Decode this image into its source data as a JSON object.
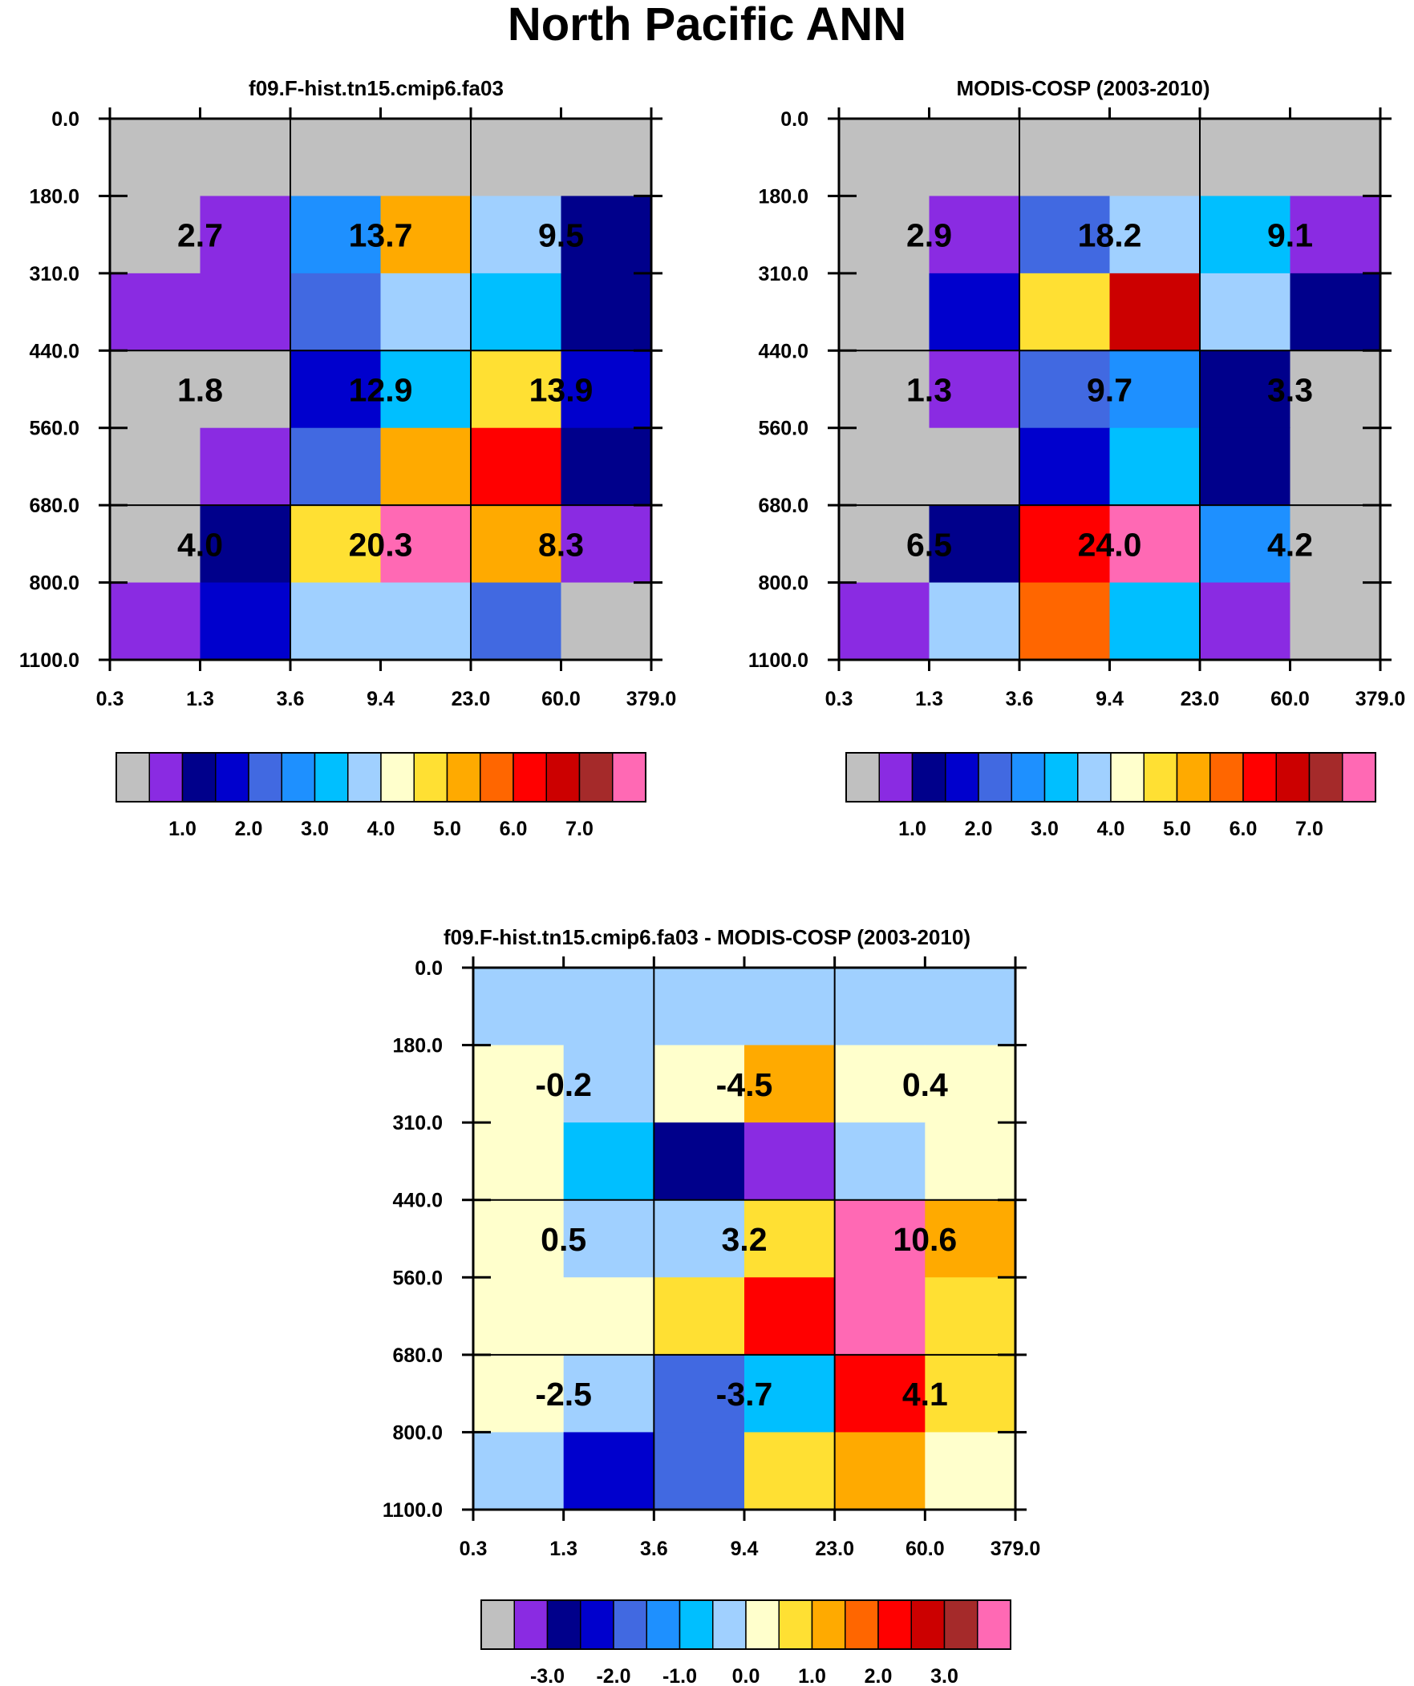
{
  "title": "North Pacific ANN",
  "x_ticks": [
    "0.3",
    "1.3",
    "3.6",
    "9.4",
    "23.0",
    "60.0",
    "379.0"
  ],
  "y_ticks": [
    "0.0",
    "180.0",
    "310.0",
    "440.0",
    "560.0",
    "680.0",
    "800.0",
    "1100.0"
  ],
  "colors": {
    "palette": [
      "#c0c0c0",
      "#8a2be2",
      "#00008b",
      "#0000cd",
      "#4169e1",
      "#1e90ff",
      "#00bfff",
      "#a0d0ff",
      "#ffffcc",
      "#ffe033",
      "#ffaa00",
      "#ff6600",
      "#ff0000",
      "#cc0000",
      "#a52a2a",
      "#ff69b4"
    ]
  },
  "chart_data": [
    {
      "type": "heatmap",
      "title": "f09.F-hist.tn15.cmip6.fa03",
      "xlabel": "",
      "ylabel": "",
      "x_edges": [
        "0.3",
        "1.3",
        "3.6",
        "9.4",
        "23.0",
        "60.0",
        "379.0"
      ],
      "y_edges": [
        "0.0",
        "180.0",
        "310.0",
        "440.0",
        "560.0",
        "680.0",
        "800.0",
        "1100.0"
      ],
      "cell_colors": [
        [
          "#c0c0c0",
          "#c0c0c0",
          "#c0c0c0",
          "#c0c0c0",
          "#c0c0c0",
          "#c0c0c0"
        ],
        [
          "#c0c0c0",
          "#8a2be2",
          "#1e90ff",
          "#ffaa00",
          "#a0d0ff",
          "#00008b"
        ],
        [
          "#8a2be2",
          "#8a2be2",
          "#4169e1",
          "#a0d0ff",
          "#00bfff",
          "#00008b"
        ],
        [
          "#c0c0c0",
          "#c0c0c0",
          "#0000cd",
          "#00bfff",
          "#ffe033",
          "#0000cd"
        ],
        [
          "#c0c0c0",
          "#8a2be2",
          "#4169e1",
          "#ffaa00",
          "#ff0000",
          "#00008b"
        ],
        [
          "#c0c0c0",
          "#00008b",
          "#ffe033",
          "#ff69b4",
          "#ffaa00",
          "#8a2be2"
        ],
        [
          "#8a2be2",
          "#0000cd",
          "#a0d0ff",
          "#a0d0ff",
          "#4169e1",
          "#c0c0c0"
        ]
      ],
      "block_totals": [
        [
          "2.7",
          "13.7",
          "9.5"
        ],
        [
          "1.8",
          "12.9",
          "13.9"
        ],
        [
          "4.0",
          "20.3",
          "8.3"
        ]
      ],
      "colorbar": {
        "colors": [
          "#c0c0c0",
          "#8a2be2",
          "#00008b",
          "#0000cd",
          "#4169e1",
          "#1e90ff",
          "#00bfff",
          "#a0d0ff",
          "#ffffcc",
          "#ffe033",
          "#ffaa00",
          "#ff6600",
          "#ff0000",
          "#cc0000",
          "#a52a2a",
          "#ff69b4"
        ],
        "labels": [
          "1.0",
          "2.0",
          "3.0",
          "4.0",
          "5.0",
          "6.0",
          "7.0"
        ]
      }
    },
    {
      "type": "heatmap",
      "title": "MODIS-COSP (2003-2010)",
      "xlabel": "",
      "ylabel": "",
      "x_edges": [
        "0.3",
        "1.3",
        "3.6",
        "9.4",
        "23.0",
        "60.0",
        "379.0"
      ],
      "y_edges": [
        "0.0",
        "180.0",
        "310.0",
        "440.0",
        "560.0",
        "680.0",
        "800.0",
        "1100.0"
      ],
      "cell_colors": [
        [
          "#c0c0c0",
          "#c0c0c0",
          "#c0c0c0",
          "#c0c0c0",
          "#c0c0c0",
          "#c0c0c0"
        ],
        [
          "#c0c0c0",
          "#8a2be2",
          "#4169e1",
          "#a0d0ff",
          "#00bfff",
          "#8a2be2"
        ],
        [
          "#c0c0c0",
          "#0000cd",
          "#ffe033",
          "#cc0000",
          "#a0d0ff",
          "#00008b"
        ],
        [
          "#c0c0c0",
          "#8a2be2",
          "#4169e1",
          "#1e90ff",
          "#00008b",
          "#c0c0c0"
        ],
        [
          "#c0c0c0",
          "#c0c0c0",
          "#0000cd",
          "#00bfff",
          "#00008b",
          "#c0c0c0"
        ],
        [
          "#c0c0c0",
          "#00008b",
          "#ff0000",
          "#ff69b4",
          "#1e90ff",
          "#c0c0c0"
        ],
        [
          "#8a2be2",
          "#a0d0ff",
          "#ff6600",
          "#00bfff",
          "#8a2be2",
          "#c0c0c0"
        ]
      ],
      "block_totals": [
        [
          "2.9",
          "18.2",
          "9.1"
        ],
        [
          "1.3",
          "9.7",
          "3.3"
        ],
        [
          "6.5",
          "24.0",
          "4.2"
        ]
      ],
      "colorbar": {
        "colors": [
          "#c0c0c0",
          "#8a2be2",
          "#00008b",
          "#0000cd",
          "#4169e1",
          "#1e90ff",
          "#00bfff",
          "#a0d0ff",
          "#ffffcc",
          "#ffe033",
          "#ffaa00",
          "#ff6600",
          "#ff0000",
          "#cc0000",
          "#a52a2a",
          "#ff69b4"
        ],
        "labels": [
          "1.0",
          "2.0",
          "3.0",
          "4.0",
          "5.0",
          "6.0",
          "7.0"
        ]
      }
    },
    {
      "type": "heatmap",
      "title": "f09.F-hist.tn15.cmip6.fa03 - MODIS-COSP (2003-2010)",
      "xlabel": "",
      "ylabel": "",
      "x_edges": [
        "0.3",
        "1.3",
        "3.6",
        "9.4",
        "23.0",
        "60.0",
        "379.0"
      ],
      "y_edges": [
        "0.0",
        "180.0",
        "310.0",
        "440.0",
        "560.0",
        "680.0",
        "800.0",
        "1100.0"
      ],
      "cell_colors": [
        [
          "#a0d0ff",
          "#a0d0ff",
          "#a0d0ff",
          "#a0d0ff",
          "#a0d0ff",
          "#a0d0ff"
        ],
        [
          "#ffffcc",
          "#a0d0ff",
          "#ffffcc",
          "#ffaa00",
          "#ffffcc",
          "#ffffcc"
        ],
        [
          "#ffffcc",
          "#00bfff",
          "#00008b",
          "#8a2be2",
          "#a0d0ff",
          "#ffffcc"
        ],
        [
          "#ffffcc",
          "#a0d0ff",
          "#a0d0ff",
          "#ffe033",
          "#ff69b4",
          "#ffaa00"
        ],
        [
          "#ffffcc",
          "#ffffcc",
          "#ffe033",
          "#ff0000",
          "#ff69b4",
          "#ffe033"
        ],
        [
          "#ffffcc",
          "#a0d0ff",
          "#4169e1",
          "#00bfff",
          "#ff0000",
          "#ffe033"
        ],
        [
          "#a0d0ff",
          "#0000cd",
          "#4169e1",
          "#ffe033",
          "#ffaa00",
          "#ffffcc"
        ]
      ],
      "block_totals": [
        [
          "-0.2",
          "-4.5",
          "0.4"
        ],
        [
          "0.5",
          "3.2",
          "10.6"
        ],
        [
          "-2.5",
          "-3.7",
          "4.1"
        ]
      ],
      "colorbar": {
        "colors": [
          "#c0c0c0",
          "#8a2be2",
          "#00008b",
          "#0000cd",
          "#4169e1",
          "#1e90ff",
          "#00bfff",
          "#a0d0ff",
          "#ffffcc",
          "#ffe033",
          "#ffaa00",
          "#ff6600",
          "#ff0000",
          "#cc0000",
          "#a52a2a",
          "#ff69b4"
        ],
        "labels": [
          "-3.0",
          "-2.0",
          "-1.0",
          "0.0",
          "1.0",
          "2.0",
          "3.0"
        ]
      }
    }
  ]
}
